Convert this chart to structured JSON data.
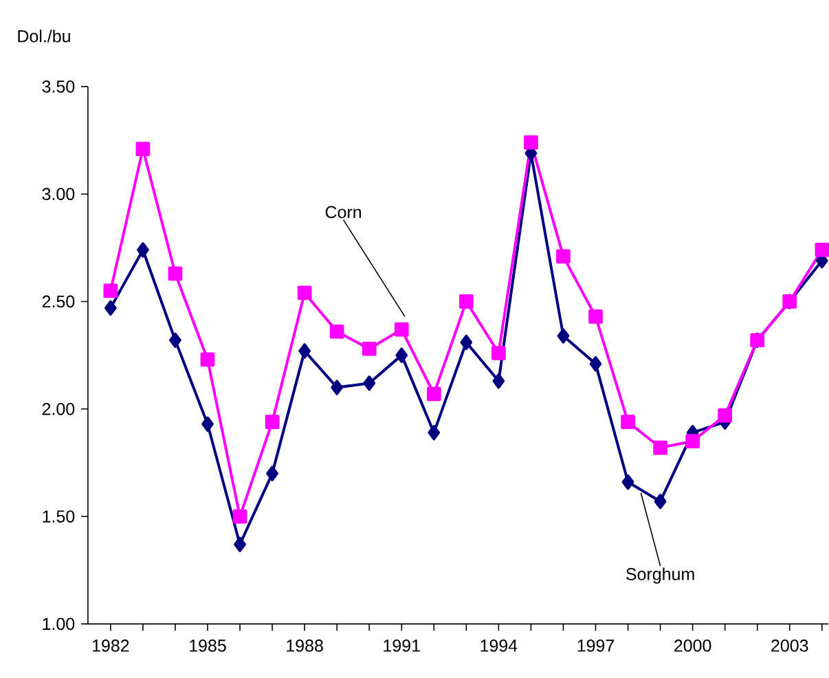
{
  "chart_data": {
    "type": "line",
    "ylabel": "Dol./bu",
    "x": [
      1982,
      1983,
      1984,
      1985,
      1986,
      1987,
      1988,
      1989,
      1990,
      1991,
      1992,
      1993,
      1994,
      1995,
      1996,
      1997,
      1998,
      1999,
      2000,
      2001,
      2002,
      2003,
      2004
    ],
    "series": [
      {
        "name": "Corn",
        "color": "#ff00ff",
        "marker": "square",
        "values": [
          2.55,
          3.21,
          2.63,
          2.23,
          1.5,
          1.94,
          2.54,
          2.36,
          2.28,
          2.37,
          2.07,
          2.5,
          2.26,
          3.24,
          2.71,
          2.43,
          1.94,
          1.82,
          1.85,
          1.97,
          2.32,
          2.5,
          2.74
        ]
      },
      {
        "name": "Sorghum",
        "color": "#000080",
        "marker": "diamond",
        "values": [
          2.47,
          2.74,
          2.32,
          1.93,
          1.37,
          1.7,
          2.27,
          2.1,
          2.12,
          2.25,
          1.89,
          2.31,
          2.13,
          3.19,
          2.34,
          2.21,
          1.66,
          1.57,
          1.89,
          1.94,
          2.32,
          2.5,
          2.69
        ]
      }
    ],
    "xlim": [
      1981.3,
      2004.2
    ],
    "xticks": [
      1982,
      {
        "value": 1983,
        "label": null
      },
      {
        "value": 1984,
        "label": null
      },
      1985,
      {
        "value": 1986,
        "label": null
      },
      {
        "value": 1987,
        "label": null
      },
      1988,
      {
        "value": 1989,
        "label": null
      },
      {
        "value": 1990,
        "label": null
      },
      1991,
      {
        "value": 1992,
        "label": null
      },
      {
        "value": 1993,
        "label": null
      },
      1994,
      {
        "value": 1995,
        "label": null
      },
      {
        "value": 1996,
        "label": null
      },
      1997,
      {
        "value": 1998,
        "label": null
      },
      {
        "value": 1999,
        "label": null
      },
      2000,
      {
        "value": 2001,
        "label": null
      },
      {
        "value": 2002,
        "label": null
      },
      2003,
      {
        "value": 2004,
        "label": null
      }
    ],
    "ylim": [
      1.0,
      3.5
    ],
    "yticks": [
      {
        "value": 1.0,
        "label": "1.00"
      },
      {
        "value": 1.5,
        "label": "1.50"
      },
      {
        "value": 2.0,
        "label": "2.00"
      },
      {
        "value": 2.5,
        "label": "2.50"
      },
      {
        "value": 3.0,
        "label": "3.00"
      },
      {
        "value": 3.5,
        "label": "3.50"
      }
    ],
    "grid": false,
    "legend": false,
    "line_style": "solid"
  }
}
